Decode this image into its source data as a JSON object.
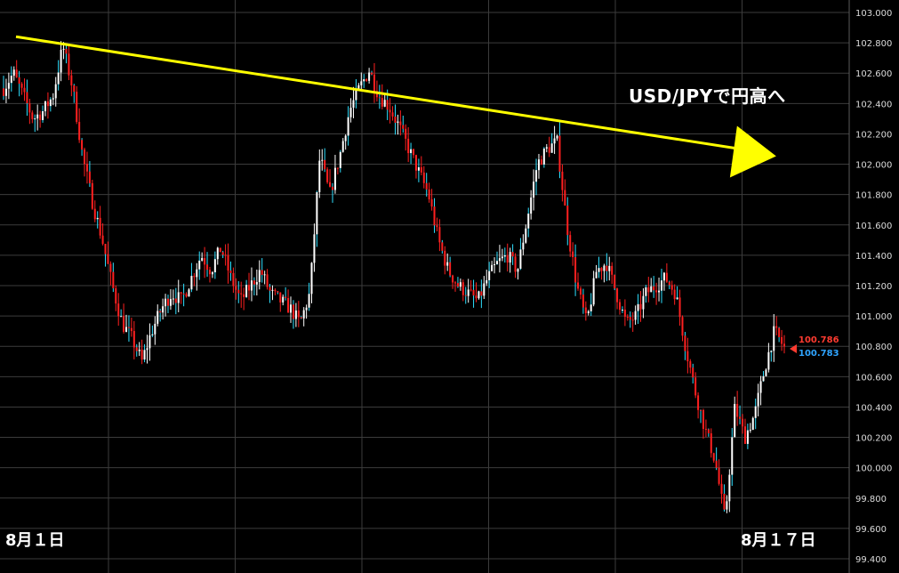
{
  "chart_data": {
    "type": "candlestick",
    "instrument": "USD/JPY",
    "ylim": [
      99.4,
      103.0
    ],
    "y_ticks": [
      "103.000",
      "102.800",
      "102.600",
      "102.400",
      "102.200",
      "102.000",
      "101.800",
      "101.600",
      "101.400",
      "101.200",
      "101.000",
      "100.800",
      "100.600",
      "100.400",
      "100.200",
      "100.000",
      "99.800",
      "99.600",
      "99.400"
    ],
    "grid": true,
    "colors": {
      "background": "#000000",
      "grid": "#3c3c3c",
      "up_candle": "#ffffff",
      "down_candle": "#ff2020",
      "alt_wick": "#2ee0ff",
      "trendline": "#ffff00",
      "ask": "#ff3b30",
      "bid": "#2fa4ff"
    },
    "close_path": [
      102.5,
      102.6,
      102.45,
      102.3,
      102.35,
      102.45,
      102.78,
      102.5,
      102.05,
      101.75,
      101.5,
      101.2,
      100.95,
      100.85,
      100.7,
      100.9,
      101.05,
      101.15,
      101.1,
      101.25,
      101.4,
      101.3,
      101.45,
      101.25,
      101.1,
      101.2,
      101.3,
      101.15,
      101.1,
      101.05,
      100.95,
      101.15,
      102.05,
      101.8,
      102.05,
      102.35,
      102.5,
      102.62,
      102.45,
      102.38,
      102.25,
      102.1,
      101.95,
      101.8,
      101.5,
      101.3,
      101.2,
      101.15,
      101.1,
      101.25,
      101.35,
      101.4,
      101.3,
      101.65,
      102.0,
      102.1,
      102.15,
      101.6,
      101.2,
      100.95,
      101.3,
      101.35,
      101.15,
      100.95,
      101.0,
      101.15,
      101.2,
      101.25,
      101.15,
      100.8,
      100.5,
      100.25,
      100.05,
      99.65,
      100.4,
      100.2,
      100.35,
      100.65,
      100.9,
      100.79
    ],
    "trendline": {
      "from": [
        0,
        102.84
      ],
      "to": [
        0.96,
        102.1
      ]
    },
    "annotations": {
      "trend_label": "USD/JPYで円高へ",
      "date_start": "8月１日",
      "date_end": "8月１７日"
    },
    "current_prices": {
      "ask": "100.786",
      "bid": "100.783"
    }
  }
}
